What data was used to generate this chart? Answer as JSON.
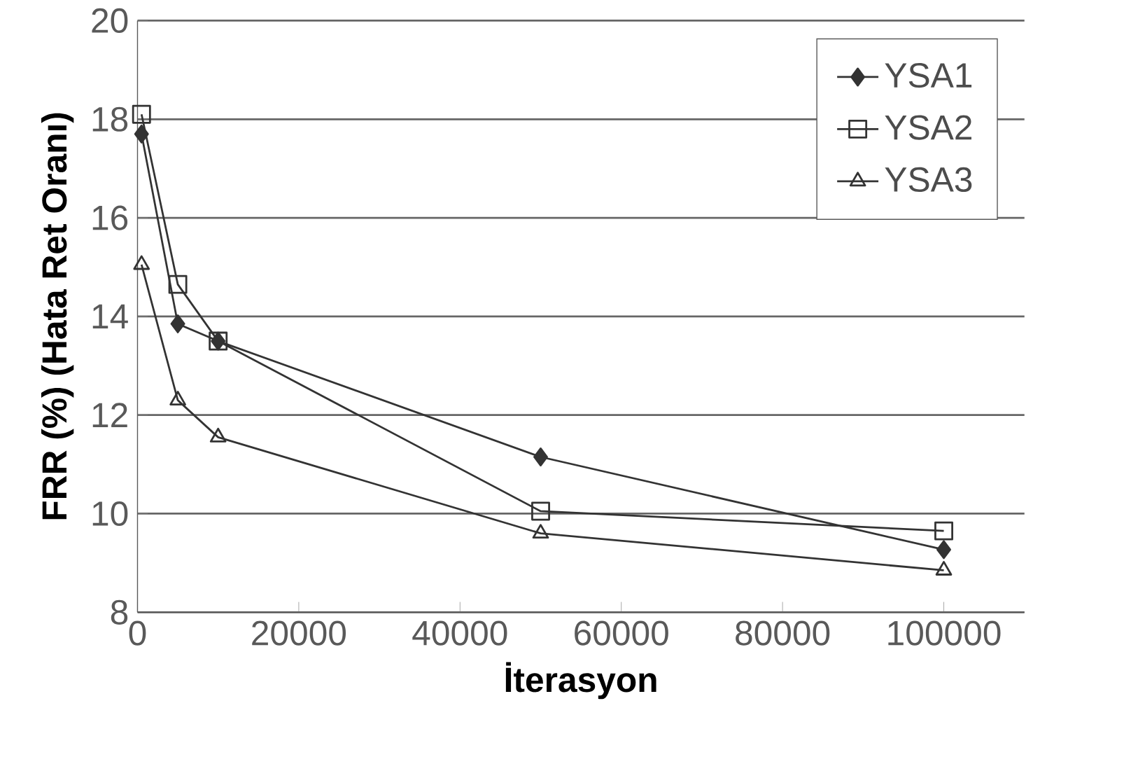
{
  "chart_data": {
    "type": "line",
    "xlabel": "İterasyon",
    "ylabel": "FRR (%)  (Hata Ret Oranı)",
    "xlim": [
      0,
      110000
    ],
    "ylim": [
      8,
      20
    ],
    "xticks": [
      0,
      20000,
      40000,
      60000,
      80000,
      100000
    ],
    "yticks": [
      8,
      10,
      12,
      14,
      16,
      18,
      20
    ],
    "grid": "y",
    "legend": "top right",
    "line_style": "solid",
    "series": [
      {
        "name": "YSA1",
        "color": "#333333",
        "marker": "diamond",
        "x": [
          500,
          5000,
          10000,
          50000,
          100000
        ],
        "values": [
          17.7,
          13.85,
          13.5,
          11.15,
          9.27
        ]
      },
      {
        "name": "YSA2",
        "color": "#333333",
        "marker": "square",
        "x": [
          500,
          5000,
          10000,
          50000,
          100000
        ],
        "values": [
          18.1,
          14.65,
          13.5,
          10.05,
          9.65
        ]
      },
      {
        "name": "YSA3",
        "color": "#333333",
        "marker": "triangle",
        "x": [
          500,
          5000,
          10000,
          50000,
          100000
        ],
        "values": [
          15.05,
          12.3,
          11.55,
          9.6,
          8.85
        ]
      }
    ]
  }
}
